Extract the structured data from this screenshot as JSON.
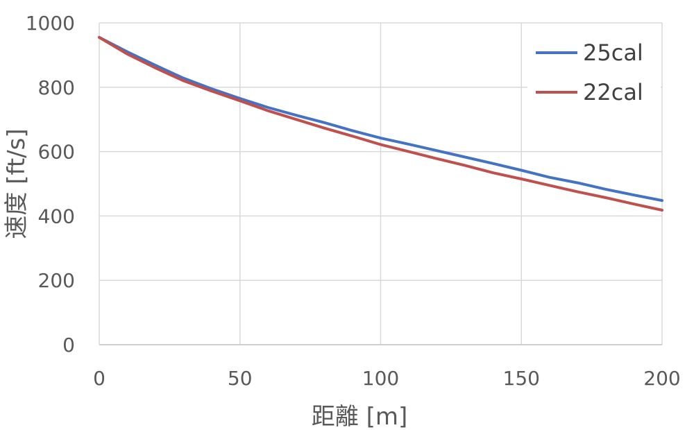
{
  "chart_data": {
    "type": "line",
    "title": "",
    "xlabel": "距離 [m]",
    "ylabel": "速度 [ft/s]",
    "xlim": [
      0,
      200
    ],
    "ylim": [
      0,
      1000
    ],
    "x_ticks": [
      0,
      50,
      100,
      150,
      200
    ],
    "y_ticks": [
      0,
      200,
      400,
      600,
      800,
      1000
    ],
    "grid": true,
    "legend_position": "top-right",
    "x": [
      0,
      10,
      20,
      30,
      40,
      50,
      60,
      70,
      80,
      90,
      100,
      110,
      120,
      130,
      140,
      150,
      160,
      170,
      180,
      190,
      200
    ],
    "series": [
      {
        "name": "25cal",
        "color": "#4472C4",
        "values": [
          955,
          910,
          868,
          828,
          795,
          765,
          737,
          713,
          690,
          665,
          642,
          623,
          603,
          583,
          563,
          542,
          520,
          503,
          483,
          465,
          448
        ]
      },
      {
        "name": "22cal",
        "color": "#C0504D",
        "values": [
          955,
          903,
          860,
          820,
          788,
          758,
          727,
          700,
          673,
          648,
          622,
          600,
          578,
          557,
          534,
          515,
          495,
          475,
          457,
          437,
          418
        ]
      }
    ]
  }
}
